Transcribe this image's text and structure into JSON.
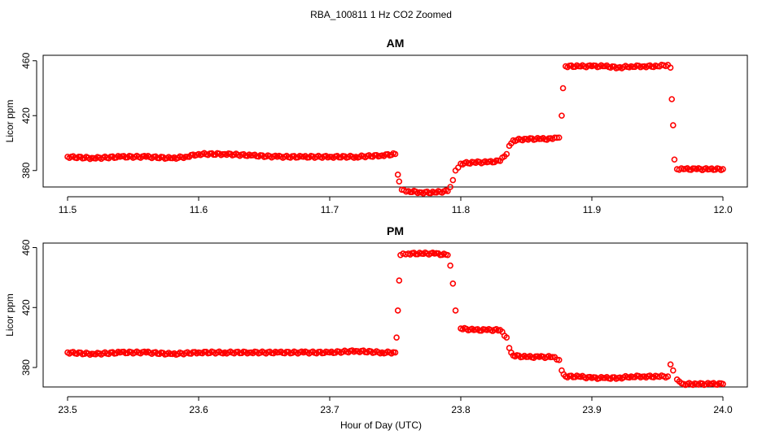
{
  "title": "RBA_100811  1 Hz CO2 Zoomed",
  "xlabel": "Hour of Day (UTC)",
  "chart_data": [
    {
      "type": "scatter",
      "title": "AM",
      "xlabel": "",
      "ylabel": "Licor ppm",
      "xlim": [
        11.5,
        12.0
      ],
      "ylim": [
        368,
        464
      ],
      "xticks": [
        "11.5",
        "11.6",
        "11.7",
        "11.8",
        "11.9",
        "12.0"
      ],
      "yticks": [
        "380",
        "420",
        "460"
      ],
      "color": "#ff0000",
      "marker": "open-circle",
      "series": [
        {
          "x": [
            11.5,
            11.52,
            11.54,
            11.56,
            11.58,
            11.59,
            11.6,
            11.62,
            11.64,
            11.66,
            11.68,
            11.7,
            11.72,
            11.74,
            11.75,
            11.752,
            11.753,
            11.755,
            11.76,
            11.77,
            11.78,
            11.79,
            11.792,
            11.794,
            11.796,
            11.8,
            11.81,
            11.82,
            11.83,
            11.835,
            11.837,
            11.84,
            11.85,
            11.86,
            11.87,
            11.875,
            11.877,
            11.878,
            11.88,
            11.89,
            11.9,
            11.91,
            11.92,
            11.93,
            11.94,
            11.95,
            11.958,
            11.96,
            11.961,
            11.962,
            11.963,
            11.965,
            11.97,
            11.98,
            11.99,
            12.0
          ],
          "y": [
            390,
            389,
            390,
            390,
            389,
            390,
            392,
            392,
            391,
            390,
            390,
            390,
            390,
            391,
            392,
            377,
            372,
            366,
            365,
            364,
            364,
            365,
            368,
            373,
            380,
            385,
            386,
            386,
            387,
            392,
            398,
            402,
            403,
            403,
            403,
            404,
            420,
            440,
            456,
            456,
            456,
            456,
            455,
            456,
            456,
            456,
            457,
            455,
            432,
            413,
            388,
            381,
            381,
            381,
            381,
            381
          ]
        }
      ]
    },
    {
      "type": "scatter",
      "title": "PM",
      "xlabel": "",
      "ylabel": "Licor ppm",
      "xlim": [
        23.5,
        24.0
      ],
      "ylim": [
        367,
        463
      ],
      "xticks": [
        "23.5",
        "23.6",
        "23.7",
        "23.8",
        "23.9",
        "24.0"
      ],
      "yticks": [
        "380",
        "420",
        "460"
      ],
      "color": "#ff0000",
      "marker": "open-circle",
      "series": [
        {
          "x": [
            23.5,
            23.52,
            23.54,
            23.56,
            23.58,
            23.6,
            23.62,
            23.64,
            23.66,
            23.68,
            23.7,
            23.72,
            23.74,
            23.75,
            23.751,
            23.752,
            23.753,
            23.754,
            23.756,
            23.76,
            23.77,
            23.78,
            23.79,
            23.792,
            23.794,
            23.796,
            23.8,
            23.81,
            23.82,
            23.83,
            23.835,
            23.837,
            23.84,
            23.85,
            23.86,
            23.87,
            23.875,
            23.877,
            23.88,
            23.89,
            23.9,
            23.91,
            23.92,
            23.93,
            23.94,
            23.95,
            23.958,
            23.96,
            23.962,
            23.965,
            23.97,
            23.98,
            23.99,
            24.0
          ],
          "y": [
            390,
            389,
            390,
            390,
            389,
            390,
            390,
            390,
            390,
            390,
            390,
            391,
            390,
            390,
            400,
            418,
            438,
            455,
            456,
            456,
            456,
            456,
            455,
            448,
            436,
            418,
            406,
            405,
            405,
            405,
            400,
            393,
            388,
            387,
            387,
            387,
            385,
            378,
            374,
            374,
            373,
            373,
            373,
            374,
            374,
            374,
            374,
            382,
            378,
            372,
            369,
            369,
            369,
            369
          ]
        }
      ]
    }
  ]
}
